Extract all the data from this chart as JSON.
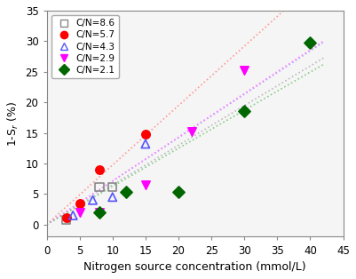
{
  "series": [
    {
      "label": "C/N=8.6",
      "marker": "s",
      "markerfacecolor": "none",
      "markeredgecolor": "#888888",
      "x": [
        3,
        8,
        10
      ],
      "y": [
        0.8,
        6.1,
        6.1
      ],
      "trendline": true,
      "trend_color": "#bbbbbb"
    },
    {
      "label": "C/N=5.7",
      "marker": "o",
      "markerfacecolor": "#ff0000",
      "markeredgecolor": "#ff0000",
      "x": [
        3,
        5,
        8,
        15
      ],
      "y": [
        1.1,
        3.4,
        9.0,
        14.8
      ],
      "trendline": true,
      "trend_color": "#ff9999"
    },
    {
      "label": "C/N=4.3",
      "marker": "^",
      "markerfacecolor": "none",
      "markeredgecolor": "#5555ff",
      "x": [
        4,
        7,
        10,
        15
      ],
      "y": [
        1.5,
        4.0,
        4.5,
        13.2
      ],
      "trendline": true,
      "trend_color": "#aaaaff"
    },
    {
      "label": "C/N=2.9",
      "marker": "v",
      "markerfacecolor": "#ff00ff",
      "markeredgecolor": "#ff00ff",
      "x": [
        5,
        8,
        15,
        22,
        30
      ],
      "y": [
        2.0,
        2.0,
        6.5,
        15.2,
        25.2
      ],
      "trendline": true,
      "trend_color": "#ff88ff"
    },
    {
      "label": "C/N=2.1",
      "marker": "D",
      "markerfacecolor": "#006600",
      "markeredgecolor": "#006600",
      "x": [
        8,
        12,
        20,
        30,
        40
      ],
      "y": [
        2.0,
        5.4,
        5.4,
        18.6,
        29.8
      ],
      "trendline": true,
      "trend_color": "#88cc88"
    }
  ],
  "xlabel": "Nitrogen source concentration (mmol/L)",
  "ylabel": "1-S$_r$ (%)",
  "xlim": [
    2,
    44
  ],
  "ylim": [
    -2,
    35
  ],
  "xticks": [
    0,
    5,
    10,
    15,
    20,
    25,
    30,
    35,
    40,
    45
  ],
  "yticks": [
    0,
    5,
    10,
    15,
    20,
    25,
    30,
    35
  ],
  "figsize": [
    4.01,
    3.14
  ],
  "dpi": 100
}
